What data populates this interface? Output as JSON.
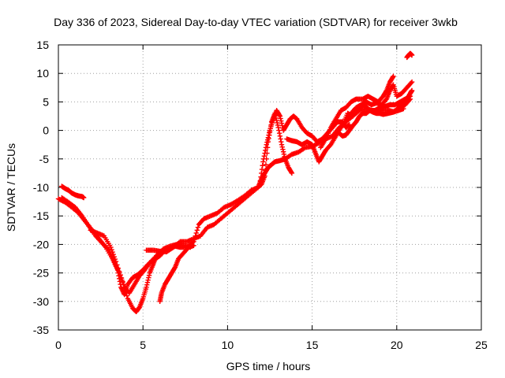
{
  "chart_data": {
    "type": "scatter",
    "title": "Day 336 of 2023, Sidereal Day-to-day VTEC variation (SDTVAR) for receiver 3wkb",
    "xlabel": "GPS time / hours",
    "ylabel": "SDTVAR / TECUs",
    "xlim": [
      0,
      25
    ],
    "ylim": [
      -35,
      15
    ],
    "xticks": [
      "0",
      "5",
      "10",
      "15",
      "20",
      "25"
    ],
    "yticks": [
      "15",
      "10",
      "5",
      "0",
      "-5",
      "-10",
      "-15",
      "-20",
      "-25",
      "-30",
      "-35"
    ],
    "grid": "dotted",
    "marker": "plus",
    "color": "#ff0000",
    "series": [
      {
        "points": [
          [
            0.0,
            -12.0
          ],
          [
            0.4,
            -12.6
          ],
          [
            0.8,
            -13.5
          ],
          [
            1.2,
            -14.5
          ],
          [
            1.6,
            -16.0
          ],
          [
            2.0,
            -17.5
          ],
          [
            2.4,
            -19.0
          ],
          [
            2.8,
            -20.5
          ],
          [
            3.2,
            -22.5
          ],
          [
            3.5,
            -24.5
          ],
          [
            3.7,
            -27.5
          ],
          [
            3.9,
            -28.8
          ],
          [
            4.1,
            -27.0
          ],
          [
            4.4,
            -25.8
          ],
          [
            4.7,
            -25.3
          ],
          [
            5.0,
            -24.5
          ],
          [
            5.3,
            -23.5
          ],
          [
            5.6,
            -22.8
          ],
          [
            6.0,
            -22.0
          ],
          [
            6.3,
            -21.0
          ],
          [
            6.6,
            -20.8
          ],
          [
            6.9,
            -20.3
          ],
          [
            7.2,
            -20.5
          ],
          [
            7.6,
            -20.5
          ],
          [
            8.0,
            -19.5
          ],
          [
            8.3,
            -16.5
          ],
          [
            8.6,
            -15.5
          ],
          [
            9.0,
            -15.0
          ],
          [
            9.4,
            -14.5
          ],
          [
            9.8,
            -13.5
          ],
          [
            10.2,
            -13.0
          ],
          [
            10.6,
            -12.3
          ],
          [
            11.0,
            -11.5
          ],
          [
            11.4,
            -10.5
          ],
          [
            11.8,
            -10.0
          ],
          [
            12.0,
            -8.5
          ],
          [
            12.2,
            -7.5
          ],
          [
            12.4,
            -6.5
          ],
          [
            12.6,
            -6.0
          ],
          [
            12.8,
            -5.5
          ],
          [
            13.1,
            -5.3
          ],
          [
            13.4,
            -5.0
          ],
          [
            13.8,
            -4.2
          ],
          [
            14.2,
            -3.8
          ],
          [
            14.6,
            -3.0
          ],
          [
            15.0,
            -2.8
          ],
          [
            15.4,
            -2.2
          ],
          [
            15.8,
            -1.5
          ],
          [
            16.2,
            -1.0
          ],
          [
            16.6,
            0.5
          ],
          [
            17.0,
            1.5
          ],
          [
            17.4,
            2.5
          ],
          [
            17.8,
            3.5
          ],
          [
            18.2,
            3.8
          ],
          [
            18.6,
            3.5
          ],
          [
            19.0,
            3.5
          ],
          [
            19.4,
            3.6
          ],
          [
            19.8,
            3.3
          ],
          [
            20.2,
            4.0
          ],
          [
            20.5,
            4.5
          ],
          [
            20.8,
            5.5
          ]
        ]
      },
      {
        "points": [
          [
            0.2,
            -11.8
          ],
          [
            0.6,
            -12.6
          ],
          [
            1.0,
            -13.5
          ],
          [
            1.4,
            -15.0
          ],
          [
            1.8,
            -16.8
          ],
          [
            2.2,
            -18.5
          ],
          [
            2.6,
            -19.8
          ],
          [
            3.0,
            -21.0
          ],
          [
            3.3,
            -23.0
          ],
          [
            3.6,
            -25.0
          ],
          [
            3.9,
            -27.5
          ],
          [
            4.2,
            -28.5
          ],
          [
            4.5,
            -27.0
          ],
          [
            4.8,
            -25.5
          ],
          [
            5.1,
            -24.5
          ],
          [
            5.4,
            -23.2
          ],
          [
            5.8,
            -22.0
          ],
          [
            6.2,
            -20.8
          ],
          [
            6.6,
            -20.3
          ],
          [
            7.0,
            -20.0
          ],
          [
            7.4,
            -20.2
          ],
          [
            7.8,
            -20.5
          ]
        ]
      },
      {
        "points": [
          [
            1.9,
            -17.5
          ],
          [
            2.3,
            -18.0
          ],
          [
            2.7,
            -18.5
          ],
          [
            3.1,
            -20.5
          ],
          [
            3.4,
            -23.0
          ],
          [
            3.8,
            -26.5
          ],
          [
            4.1,
            -29.5
          ],
          [
            4.4,
            -31.2
          ],
          [
            4.6,
            -31.8
          ],
          [
            4.8,
            -31.0
          ],
          [
            5.0,
            -29.5
          ],
          [
            5.2,
            -27.5
          ],
          [
            5.4,
            -25.0
          ],
          [
            5.6,
            -23.5
          ],
          [
            5.8,
            -22.0
          ],
          [
            6.0,
            -21.5
          ]
        ]
      },
      {
        "points": [
          [
            6.0,
            -30.0
          ],
          [
            6.1,
            -28.5
          ],
          [
            6.3,
            -27.0
          ],
          [
            6.5,
            -26.0
          ],
          [
            6.7,
            -25.0
          ],
          [
            6.9,
            -24.0
          ],
          [
            7.1,
            -22.5
          ],
          [
            7.4,
            -21.5
          ],
          [
            7.7,
            -20.5
          ],
          [
            8.0,
            -20.2
          ]
        ]
      },
      {
        "points": [
          [
            5.2,
            -21.0
          ],
          [
            5.6,
            -21.0
          ],
          [
            6.0,
            -21.2
          ],
          [
            6.4,
            -21.3
          ],
          [
            6.8,
            -20.5
          ],
          [
            7.2,
            -19.5
          ],
          [
            7.6,
            -19.5
          ],
          [
            8.0,
            -19.0
          ],
          [
            8.4,
            -18.5
          ],
          [
            8.8,
            -17.0
          ],
          [
            9.2,
            -16.5
          ],
          [
            9.6,
            -15.5
          ],
          [
            10.0,
            -14.5
          ],
          [
            10.4,
            -13.5
          ],
          [
            10.8,
            -12.5
          ],
          [
            11.2,
            -11.5
          ],
          [
            11.6,
            -10.5
          ],
          [
            12.0,
            -9.5
          ],
          [
            12.2,
            -8.0
          ],
          [
            12.4,
            -2.0
          ],
          [
            12.6,
            1.5
          ],
          [
            12.8,
            3.0
          ],
          [
            13.0,
            0.5
          ],
          [
            13.2,
            -2.5
          ],
          [
            13.4,
            -5.0
          ],
          [
            13.6,
            -6.5
          ],
          [
            13.8,
            -7.5
          ]
        ]
      },
      {
        "points": [
          [
            11.9,
            -9.5
          ],
          [
            12.1,
            -5.5
          ],
          [
            12.3,
            -2.5
          ],
          [
            12.5,
            0.0
          ],
          [
            12.7,
            2.0
          ],
          [
            12.9,
            3.5
          ],
          [
            13.1,
            2.5
          ],
          [
            13.3,
            0.0
          ],
          [
            13.5,
            1.0
          ],
          [
            13.7,
            2.0
          ],
          [
            13.9,
            2.5
          ],
          [
            14.1,
            2.0
          ],
          [
            14.4,
            0.5
          ],
          [
            14.7,
            -0.5
          ],
          [
            15.0,
            -1.0
          ],
          [
            15.3,
            -2.0
          ],
          [
            15.6,
            -1.5
          ],
          [
            15.9,
            -0.5
          ],
          [
            16.2,
            0.5
          ],
          [
            16.5,
            1.5
          ],
          [
            16.8,
            1.5
          ],
          [
            17.0,
            0.5
          ],
          [
            17.2,
            1.0
          ]
        ]
      },
      {
        "points": [
          [
            13.5,
            -1.5
          ],
          [
            13.8,
            -1.8
          ],
          [
            14.1,
            -2.0
          ],
          [
            14.4,
            -2.5
          ],
          [
            14.7,
            -2.0
          ],
          [
            15.0,
            -2.5
          ],
          [
            15.2,
            -4.0
          ],
          [
            15.4,
            -5.5
          ],
          [
            15.6,
            -4.5
          ],
          [
            15.8,
            -3.5
          ],
          [
            16.1,
            -2.5
          ],
          [
            16.4,
            -1.0
          ],
          [
            16.7,
            0.5
          ],
          [
            17.0,
            1.5
          ],
          [
            17.3,
            3.0
          ],
          [
            17.6,
            4.0
          ],
          [
            17.9,
            4.5
          ],
          [
            18.2,
            5.0
          ],
          [
            18.5,
            4.5
          ],
          [
            18.8,
            4.8
          ],
          [
            19.1,
            4.5
          ],
          [
            19.4,
            5.5
          ],
          [
            19.6,
            7.0
          ],
          [
            19.8,
            8.0
          ],
          [
            20.0,
            6.0
          ],
          [
            20.3,
            6.5
          ],
          [
            20.6,
            7.5
          ],
          [
            20.9,
            8.5
          ]
        ]
      },
      {
        "points": [
          [
            15.5,
            -3.0
          ],
          [
            15.8,
            -1.5
          ],
          [
            16.1,
            0.5
          ],
          [
            16.4,
            2.0
          ],
          [
            16.7,
            3.5
          ],
          [
            17.0,
            4.0
          ],
          [
            17.3,
            5.0
          ],
          [
            17.6,
            5.5
          ],
          [
            18.0,
            5.5
          ],
          [
            18.3,
            6.0
          ],
          [
            18.6,
            5.5
          ],
          [
            18.9,
            5.0
          ],
          [
            19.2,
            6.0
          ],
          [
            19.4,
            7.0
          ],
          [
            19.6,
            8.5
          ],
          [
            19.8,
            9.5
          ]
        ]
      },
      {
        "points": [
          [
            16.8,
            1.0
          ],
          [
            17.1,
            3.0
          ],
          [
            17.4,
            2.5
          ],
          [
            17.8,
            4.0
          ],
          [
            18.1,
            4.5
          ],
          [
            18.4,
            3.5
          ],
          [
            18.7,
            3.5
          ],
          [
            19.0,
            4.0
          ],
          [
            19.3,
            4.2
          ],
          [
            19.6,
            4.5
          ],
          [
            19.9,
            4.5
          ],
          [
            20.2,
            5.0
          ],
          [
            20.5,
            5.5
          ],
          [
            20.8,
            6.0
          ]
        ]
      },
      {
        "points": [
          [
            20.0,
            3.5
          ],
          [
            20.2,
            4.5
          ],
          [
            20.4,
            5.0
          ],
          [
            20.6,
            5.5
          ],
          [
            20.8,
            6.5
          ],
          [
            20.9,
            7.0
          ]
        ]
      },
      {
        "points": [
          [
            0.2,
            -9.8
          ],
          [
            0.4,
            -10.2
          ],
          [
            0.6,
            -10.5
          ],
          [
            0.8,
            -11.0
          ],
          [
            1.0,
            -11.3
          ],
          [
            1.2,
            -11.5
          ],
          [
            1.4,
            -11.6
          ],
          [
            1.5,
            -11.8
          ]
        ]
      },
      {
        "points": [
          [
            20.6,
            12.8
          ],
          [
            20.7,
            13.2
          ],
          [
            20.8,
            13.5
          ],
          [
            20.9,
            13.2
          ]
        ]
      },
      {
        "points": [
          [
            16.6,
            -0.5
          ],
          [
            16.8,
            -1.0
          ],
          [
            17.0,
            -0.8
          ],
          [
            17.2,
            0.0
          ],
          [
            17.4,
            0.8
          ],
          [
            17.6,
            1.5
          ],
          [
            17.8,
            2.5
          ],
          [
            18.0,
            3.0
          ],
          [
            18.2,
            3.0
          ],
          [
            18.4,
            3.5
          ],
          [
            18.6,
            3.2
          ],
          [
            18.8,
            3.0
          ],
          [
            19.0,
            3.0
          ],
          [
            19.2,
            2.8
          ],
          [
            19.5,
            3.0
          ],
          [
            19.8,
            3.2
          ],
          [
            20.1,
            3.5
          ],
          [
            20.4,
            3.8
          ]
        ]
      }
    ]
  }
}
